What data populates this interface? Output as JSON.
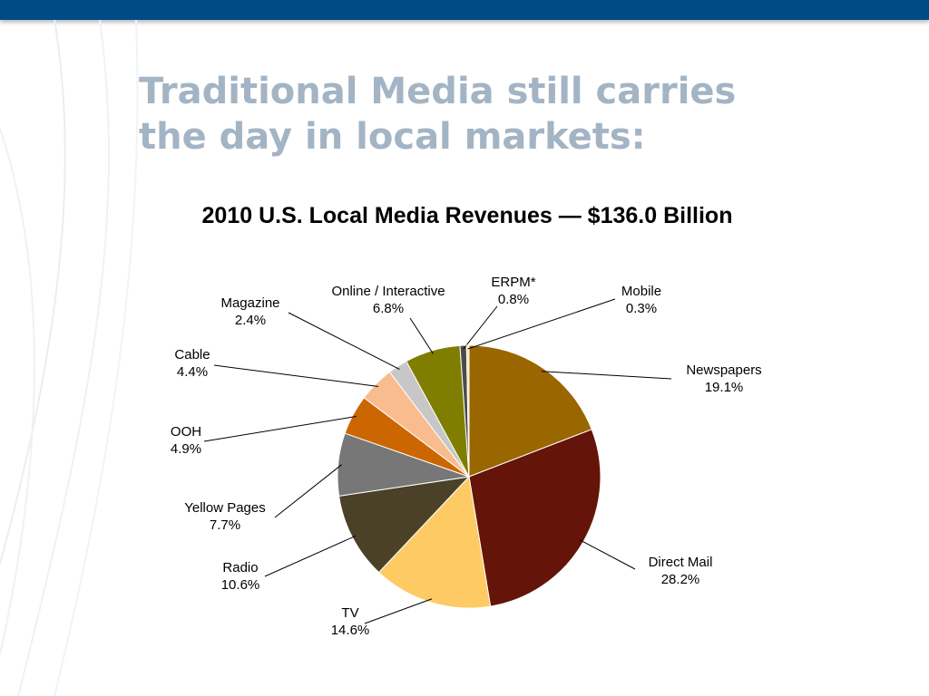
{
  "slide": {
    "title_line1": "Traditional Media still carries",
    "title_line2": "the day in local markets:",
    "accent_color": "#004b87",
    "title_color": "#a3b4c4"
  },
  "chart_data": {
    "type": "pie",
    "title": "2010 U.S. Local Media Revenues — $136.0 Billion",
    "slices": [
      {
        "label": "Newspapers",
        "value": 19.1,
        "display": "19.1%",
        "color": "#9a6600"
      },
      {
        "label": "Direct Mail",
        "value": 28.2,
        "display": "28.2%",
        "color": "#641408"
      },
      {
        "label": "TV",
        "value": 14.6,
        "display": "14.6%",
        "color": "#fdca64"
      },
      {
        "label": "Radio",
        "value": 10.6,
        "display": "10.6%",
        "color": "#4a4128"
      },
      {
        "label": "Yellow Pages",
        "value": 7.7,
        "display": "7.7%",
        "color": "#777777"
      },
      {
        "label": "OOH",
        "value": 4.9,
        "display": "4.9%",
        "color": "#cc6600"
      },
      {
        "label": "Cable",
        "value": 4.4,
        "display": "4.4%",
        "color": "#f9bc8f"
      },
      {
        "label": "Magazine",
        "value": 2.4,
        "display": "2.4%",
        "color": "#c7c7c7"
      },
      {
        "label": "Online / Interactive",
        "value": 6.8,
        "display": "6.8%",
        "color": "#7f7e00"
      },
      {
        "label": "ERPM*",
        "value": 0.8,
        "display": "0.8%",
        "color": "#4b4b4b"
      },
      {
        "label": "Mobile",
        "value": 0.3,
        "display": "0.3%",
        "color": "#f2e4a6"
      }
    ]
  }
}
